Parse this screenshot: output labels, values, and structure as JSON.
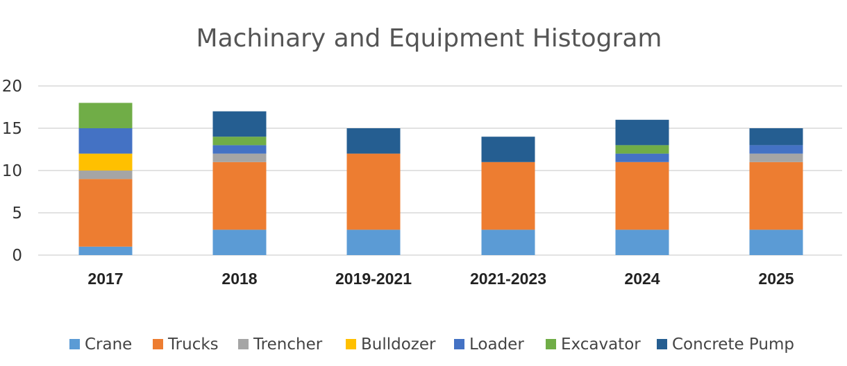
{
  "chart_data": {
    "type": "bar",
    "stacked": true,
    "title": "Machinary and Equipment Histogram",
    "xlabel": "",
    "ylabel": "",
    "categories": [
      "2017",
      "2018",
      "2019-2021",
      "2021-2023",
      "2024",
      "2025"
    ],
    "ylim": [
      0,
      20
    ],
    "yticks": [
      0,
      5,
      10,
      15,
      20
    ],
    "grid": true,
    "legend_position": "bottom",
    "series": [
      {
        "name": "Crane",
        "color": "#5B9BD5",
        "values": [
          1,
          3,
          3,
          3,
          3,
          3
        ]
      },
      {
        "name": "Trucks",
        "color": "#ED7D31",
        "values": [
          8,
          8,
          9,
          8,
          8,
          8
        ]
      },
      {
        "name": "Trencher",
        "color": "#A5A5A5",
        "values": [
          1,
          1,
          0,
          0,
          0,
          1
        ]
      },
      {
        "name": "Bulldozer",
        "color": "#FFC000",
        "values": [
          2,
          0,
          0,
          0,
          0,
          0
        ]
      },
      {
        "name": "Loader",
        "color": "#4472C4",
        "values": [
          3,
          1,
          0,
          0,
          1,
          1
        ]
      },
      {
        "name": "Excavator",
        "color": "#70AD47",
        "values": [
          3,
          1,
          0,
          0,
          1,
          0
        ]
      },
      {
        "name": "Concrete Pump",
        "color": "#255E91",
        "values": [
          0,
          3,
          3,
          3,
          3,
          2
        ]
      }
    ]
  }
}
